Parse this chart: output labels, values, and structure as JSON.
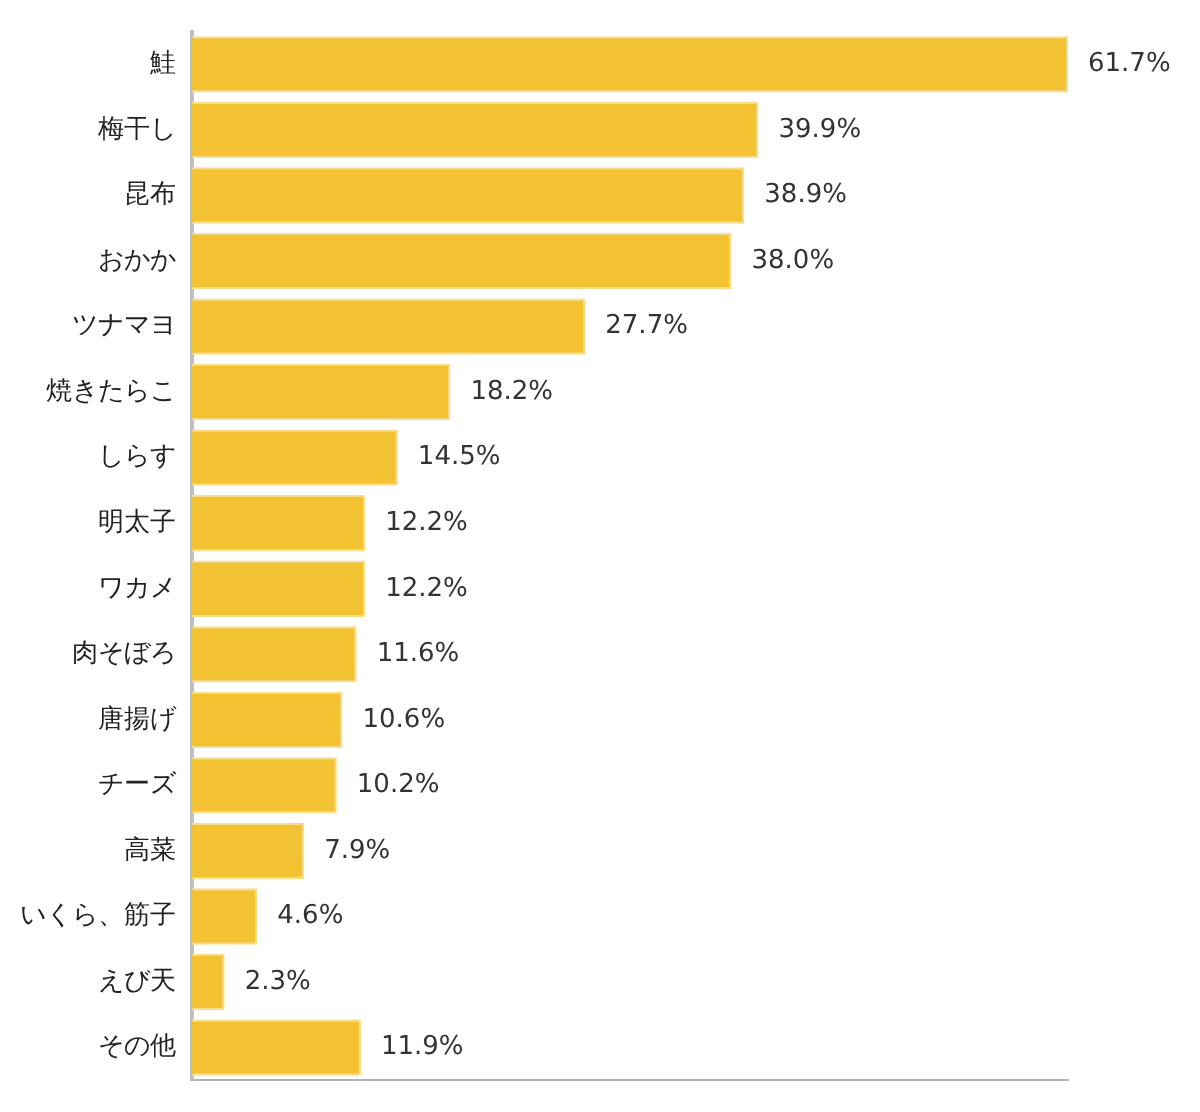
{
  "chart_data": {
    "type": "bar",
    "orientation": "horizontal",
    "categories": [
      "鮭",
      "梅干し",
      "昆布",
      "おかか",
      "ツナマヨ",
      "焼きたらこ",
      "しらす",
      "明太子",
      "ワカメ",
      "肉そぼろ",
      "唐揚げ",
      "チーズ",
      "高菜",
      "いくら、筋子",
      "えび天",
      "その他"
    ],
    "values": [
      61.7,
      39.9,
      38.9,
      38.0,
      27.7,
      18.2,
      14.5,
      12.2,
      12.2,
      11.6,
      10.6,
      10.2,
      7.9,
      4.6,
      2.3,
      11.9
    ],
    "value_labels": [
      "61.7%",
      "39.9%",
      "38.9%",
      "38.0%",
      "27.7%",
      "18.2%",
      "14.5%",
      "12.2%",
      "12.2%",
      "11.6%",
      "10.6%",
      "10.2%",
      "7.9%",
      "4.6%",
      "2.3%",
      "11.9%"
    ],
    "color": "#f2c233",
    "grid": false,
    "legend": false,
    "tick_labels": "y"
  }
}
